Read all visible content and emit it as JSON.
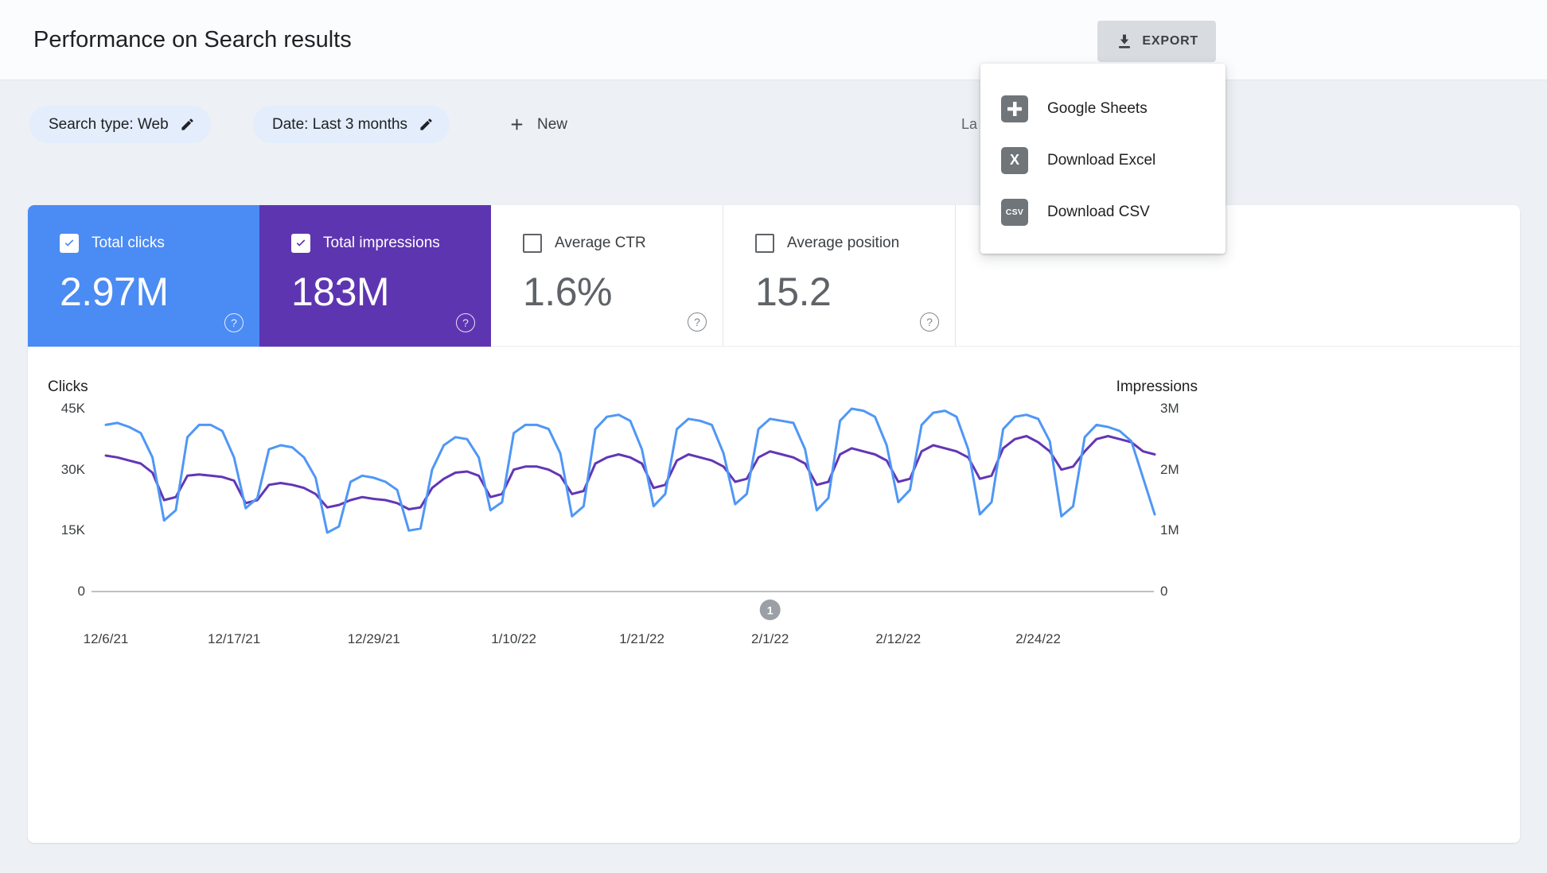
{
  "header": {
    "title": "Performance on Search results",
    "export_label": "EXPORT"
  },
  "export_menu": {
    "items": [
      {
        "label": "Google Sheets",
        "icon": "google-sheets-icon",
        "icon_text": ""
      },
      {
        "label": "Download Excel",
        "icon": "excel-icon",
        "icon_text": "X"
      },
      {
        "label": "Download CSV",
        "icon": "csv-icon",
        "icon_text": "CSV"
      }
    ]
  },
  "filters": {
    "chips": [
      {
        "label": "Search type: Web"
      },
      {
        "label": "Date: Last 3 months"
      }
    ],
    "new_button": "New",
    "truncated_text": "La"
  },
  "icons": {
    "help_glyph": "?"
  },
  "metrics": [
    {
      "label": "Total clicks",
      "value": "2.97M",
      "checked": true,
      "color": "#4b8bf4"
    },
    {
      "label": "Total impressions",
      "value": "183M",
      "checked": true,
      "color": "#5e35b1"
    },
    {
      "label": "Average CTR",
      "value": "1.6%",
      "checked": false,
      "color": "#ffffff"
    },
    {
      "label": "Average position",
      "value": "15.2",
      "checked": false,
      "color": "#ffffff"
    }
  ],
  "chart_data": {
    "type": "line",
    "title": "",
    "grid": false,
    "legend": "none",
    "x": [
      "12/6/21",
      "12/7/21",
      "12/8/21",
      "12/9/21",
      "12/10/21",
      "12/11/21",
      "12/12/21",
      "12/13/21",
      "12/14/21",
      "12/15/21",
      "12/16/21",
      "12/17/21",
      "12/18/21",
      "12/19/21",
      "12/20/21",
      "12/21/21",
      "12/22/21",
      "12/23/21",
      "12/24/21",
      "12/25/21",
      "12/26/21",
      "12/27/21",
      "12/28/21",
      "12/29/21",
      "12/30/21",
      "12/31/21",
      "1/1/22",
      "1/2/22",
      "1/3/22",
      "1/4/22",
      "1/5/22",
      "1/6/22",
      "1/7/22",
      "1/8/22",
      "1/9/22",
      "1/10/22",
      "1/11/22",
      "1/12/22",
      "1/13/22",
      "1/14/22",
      "1/15/22",
      "1/16/22",
      "1/17/22",
      "1/18/22",
      "1/19/22",
      "1/20/22",
      "1/21/22",
      "1/22/22",
      "1/23/22",
      "1/24/22",
      "1/25/22",
      "1/26/22",
      "1/27/22",
      "1/28/22",
      "1/29/22",
      "1/30/22",
      "1/31/22",
      "2/1/22",
      "2/2/22",
      "2/3/22",
      "2/4/22",
      "2/5/22",
      "2/6/22",
      "2/7/22",
      "2/8/22",
      "2/9/22",
      "2/10/22",
      "2/11/22",
      "2/12/22",
      "2/13/22",
      "2/14/22",
      "2/15/22",
      "2/16/22",
      "2/17/22",
      "2/18/22",
      "2/19/22",
      "2/20/22",
      "2/21/22",
      "2/22/22",
      "2/23/22",
      "2/24/22",
      "2/25/22",
      "2/26/22",
      "2/27/22",
      "2/28/22",
      "3/1/22",
      "3/2/22",
      "3/3/22",
      "3/4/22",
      "3/5/22",
      "3/6/22"
    ],
    "series": [
      {
        "name": "Clicks",
        "axis": "left",
        "unit": "K",
        "color": "#4f97f6",
        "values": [
          41,
          41.5,
          40.5,
          39,
          33,
          17.5,
          20,
          38,
          41,
          41,
          39.5,
          33,
          20.5,
          23,
          35,
          36,
          35.5,
          33,
          28,
          14.5,
          16,
          27,
          28.5,
          28,
          27,
          25,
          15,
          15.5,
          30,
          36,
          38,
          37.5,
          33,
          20,
          22,
          39,
          41,
          41,
          40,
          34,
          18.5,
          21,
          40,
          43,
          43.5,
          42,
          35,
          21,
          24,
          40,
          42.5,
          42,
          41,
          34,
          21.5,
          24,
          40,
          42.5,
          42,
          41.5,
          35,
          20,
          23,
          42,
          45,
          44.5,
          43,
          36,
          22,
          25,
          41,
          44,
          44.5,
          43,
          35,
          19,
          22,
          40,
          43,
          43.5,
          42.5,
          37,
          18.5,
          21,
          38,
          41,
          40.5,
          39.5,
          37,
          28,
          19
        ]
      },
      {
        "name": "Impressions",
        "axis": "right",
        "unit": "M",
        "color": "#6236b5",
        "values": [
          2.23,
          2.2,
          2.15,
          2.1,
          1.95,
          1.5,
          1.55,
          1.9,
          1.92,
          1.9,
          1.88,
          1.82,
          1.45,
          1.5,
          1.75,
          1.78,
          1.75,
          1.7,
          1.6,
          1.38,
          1.42,
          1.5,
          1.55,
          1.52,
          1.5,
          1.45,
          1.35,
          1.38,
          1.7,
          1.85,
          1.95,
          1.97,
          1.9,
          1.55,
          1.6,
          2.0,
          2.05,
          2.05,
          2.0,
          1.9,
          1.6,
          1.65,
          2.1,
          2.2,
          2.25,
          2.2,
          2.1,
          1.7,
          1.75,
          2.15,
          2.25,
          2.2,
          2.15,
          2.05,
          1.8,
          1.85,
          2.2,
          2.3,
          2.25,
          2.2,
          2.1,
          1.75,
          1.8,
          2.25,
          2.35,
          2.3,
          2.25,
          2.15,
          1.8,
          1.85,
          2.3,
          2.4,
          2.35,
          2.3,
          2.2,
          1.85,
          1.9,
          2.35,
          2.5,
          2.55,
          2.45,
          2.3,
          2.0,
          2.05,
          2.3,
          2.5,
          2.55,
          2.5,
          2.45,
          2.3,
          2.25
        ]
      }
    ],
    "y_left": {
      "title": "Clicks",
      "ymax": 45,
      "unit": "K",
      "ticks": [
        {
          "label": "45K",
          "value": 45
        },
        {
          "label": "30K",
          "value": 30
        },
        {
          "label": "15K",
          "value": 15
        },
        {
          "label": "0",
          "value": 0
        }
      ]
    },
    "y_right": {
      "title": "Impressions",
      "ymax": 3,
      "unit": "M",
      "ticks": [
        {
          "label": "3M",
          "value": 3
        },
        {
          "label": "2M",
          "value": 2
        },
        {
          "label": "1M",
          "value": 1
        },
        {
          "label": "0",
          "value": 0
        }
      ]
    },
    "xticks": [
      {
        "label": "12/6/21",
        "index": 0
      },
      {
        "label": "12/17/21",
        "index": 11
      },
      {
        "label": "12/29/21",
        "index": 23
      },
      {
        "label": "1/10/22",
        "index": 35
      },
      {
        "label": "1/21/22",
        "index": 46
      },
      {
        "label": "2/1/22",
        "index": 57
      },
      {
        "label": "2/12/22",
        "index": 68
      },
      {
        "label": "2/24/22",
        "index": 80
      }
    ],
    "annotation": {
      "label": "1",
      "index": 57
    }
  }
}
